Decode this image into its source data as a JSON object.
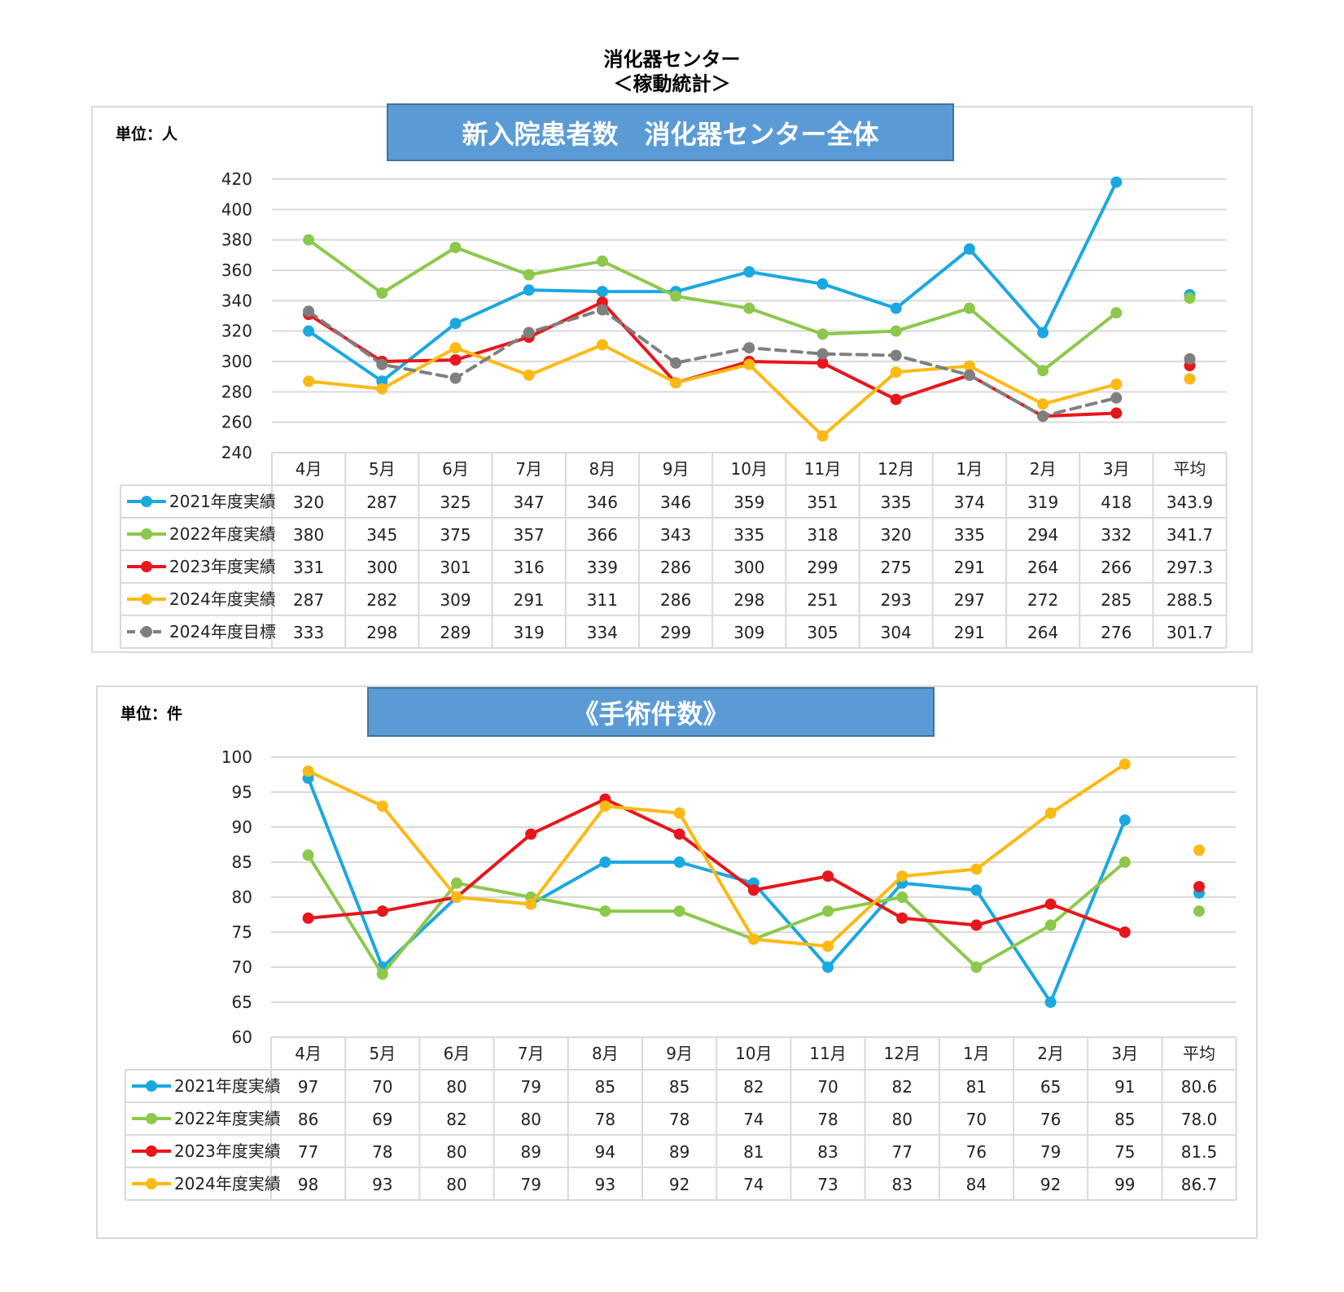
{
  "page": {
    "title_line1": "消化器センター",
    "title_line2": "＜稼動統計＞"
  },
  "colors": {
    "2021": "#1aa8e0",
    "2022": "#8cc84b",
    "2023": "#e8161b",
    "2024": "#fdb913",
    "target": "#7f7f7f",
    "grid": "#d9d9d9",
    "banner": "#5b9bd5"
  },
  "chart_data": [
    {
      "type": "line",
      "unit_label": "単位：人",
      "title": "新入院患者数　消化器センター全体",
      "categories": [
        "4月",
        "5月",
        "6月",
        "7月",
        "8月",
        "9月",
        "10月",
        "11月",
        "12月",
        "1月",
        "2月",
        "3月"
      ],
      "avg_label": "平均",
      "ylim": [
        240,
        420
      ],
      "ytick_step": 20,
      "yticks": [
        "240",
        "260",
        "280",
        "300",
        "320",
        "340",
        "360",
        "380",
        "400",
        "420"
      ],
      "series": [
        {
          "name": "2021年度実績",
          "color_key": "2021",
          "dashed": false,
          "values": [
            320,
            287,
            325,
            347,
            346,
            346,
            359,
            351,
            335,
            374,
            319,
            418
          ],
          "avg": 343.9,
          "avg_text": "343.9"
        },
        {
          "name": "2022年度実績",
          "color_key": "2022",
          "dashed": false,
          "values": [
            380,
            345,
            375,
            357,
            366,
            343,
            335,
            318,
            320,
            335,
            294,
            332
          ],
          "avg": 341.7,
          "avg_text": "341.7"
        },
        {
          "name": "2023年度実績",
          "color_key": "2023",
          "dashed": false,
          "values": [
            331,
            300,
            301,
            316,
            339,
            286,
            300,
            299,
            275,
            291,
            264,
            266
          ],
          "avg": 297.3,
          "avg_text": "297.3"
        },
        {
          "name": "2024年度実績",
          "color_key": "2024",
          "dashed": false,
          "values": [
            287,
            282,
            309,
            291,
            311,
            286,
            298,
            251,
            293,
            297,
            272,
            285
          ],
          "avg": 288.5,
          "avg_text": "288.5"
        },
        {
          "name": "2024年度目標",
          "color_key": "target",
          "dashed": true,
          "values": [
            333,
            298,
            289,
            319,
            334,
            299,
            309,
            305,
            304,
            291,
            264,
            276
          ],
          "avg": 301.7,
          "avg_text": "301.7"
        }
      ]
    },
    {
      "type": "line",
      "unit_label": "単位：件",
      "title": "《手術件数》",
      "categories": [
        "4月",
        "5月",
        "6月",
        "7月",
        "8月",
        "9月",
        "10月",
        "11月",
        "12月",
        "1月",
        "2月",
        "3月"
      ],
      "avg_label": "平均",
      "ylim": [
        60,
        100
      ],
      "ytick_step": 5,
      "yticks": [
        "60",
        "65",
        "70",
        "75",
        "80",
        "85",
        "90",
        "95",
        "100"
      ],
      "series": [
        {
          "name": "2021年度実績",
          "color_key": "2021",
          "dashed": false,
          "values": [
            97,
            70,
            80,
            79,
            85,
            85,
            82,
            70,
            82,
            81,
            65,
            91
          ],
          "avg": 80.6,
          "avg_text": "80.6"
        },
        {
          "name": "2022年度実績",
          "color_key": "2022",
          "dashed": false,
          "values": [
            86,
            69,
            82,
            80,
            78,
            78,
            74,
            78,
            80,
            70,
            76,
            85
          ],
          "avg": 78.0,
          "avg_text": "78.0"
        },
        {
          "name": "2023年度実績",
          "color_key": "2023",
          "dashed": false,
          "values": [
            77,
            78,
            80,
            89,
            94,
            89,
            81,
            83,
            77,
            76,
            79,
            75
          ],
          "avg": 81.5,
          "avg_text": "81.5"
        },
        {
          "name": "2024年度実績",
          "color_key": "2024",
          "dashed": false,
          "values": [
            98,
            93,
            80,
            79,
            93,
            92,
            74,
            73,
            83,
            84,
            92,
            99
          ],
          "avg": 86.7,
          "avg_text": "86.7"
        }
      ]
    }
  ]
}
